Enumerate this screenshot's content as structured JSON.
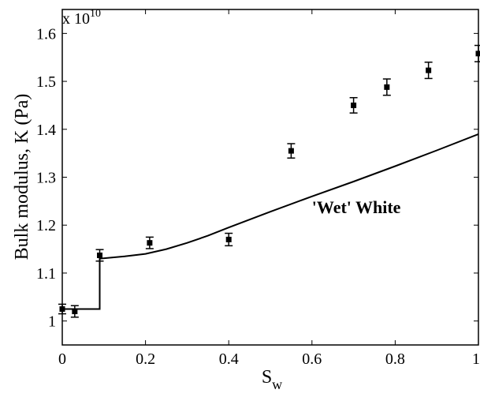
{
  "chart_data": {
    "type": "scatter",
    "xlabel_main": "S",
    "xlabel_sub": "w",
    "ylabel": "Bulk modulus, K (Pa)",
    "y_multiplier_base": "x 10",
    "y_multiplier_exp": "10",
    "xlim": [
      0,
      1
    ],
    "ylim": [
      0.95,
      1.65
    ],
    "x_ticks": [
      0,
      0.2,
      0.4,
      0.6,
      0.8,
      1
    ],
    "x_tick_labels": [
      "0",
      "0.2",
      "0.4",
      "0.6",
      "0.8",
      "1"
    ],
    "y_ticks": [
      1.0,
      1.1,
      1.2,
      1.3,
      1.4,
      1.5,
      1.6
    ],
    "y_tick_labels": [
      "1",
      "1.1",
      "1.2",
      "1.3",
      "1.4",
      "1.5",
      "1.6"
    ],
    "grid": false,
    "series": [
      {
        "type": "scatter",
        "points": [
          {
            "x": 0.0,
            "y": 1.025,
            "err": 0.01
          },
          {
            "x": 0.03,
            "y": 1.02,
            "err": 0.012
          },
          {
            "x": 0.09,
            "y": 1.137,
            "err": 0.012
          },
          {
            "x": 0.21,
            "y": 1.163,
            "err": 0.012
          },
          {
            "x": 0.4,
            "y": 1.17,
            "err": 0.013
          },
          {
            "x": 0.55,
            "y": 1.355,
            "err": 0.015
          },
          {
            "x": 0.7,
            "y": 1.45,
            "err": 0.016
          },
          {
            "x": 0.78,
            "y": 1.488,
            "err": 0.017
          },
          {
            "x": 0.88,
            "y": 1.523,
            "err": 0.017
          },
          {
            "x": 1.0,
            "y": 1.558,
            "err": 0.017
          }
        ]
      },
      {
        "type": "line",
        "x": [
          0.0,
          0.09,
          0.09,
          0.15,
          0.2,
          0.25,
          0.3,
          0.35,
          0.4,
          0.5,
          0.6,
          0.7,
          0.8,
          0.9,
          1.0
        ],
        "y": [
          1.025,
          1.025,
          1.13,
          1.135,
          1.14,
          1.15,
          1.163,
          1.178,
          1.195,
          1.228,
          1.26,
          1.291,
          1.323,
          1.356,
          1.39
        ]
      }
    ],
    "annotations": [
      {
        "text": "'Wet' White",
        "x": 0.6,
        "y": 1.225
      }
    ]
  }
}
